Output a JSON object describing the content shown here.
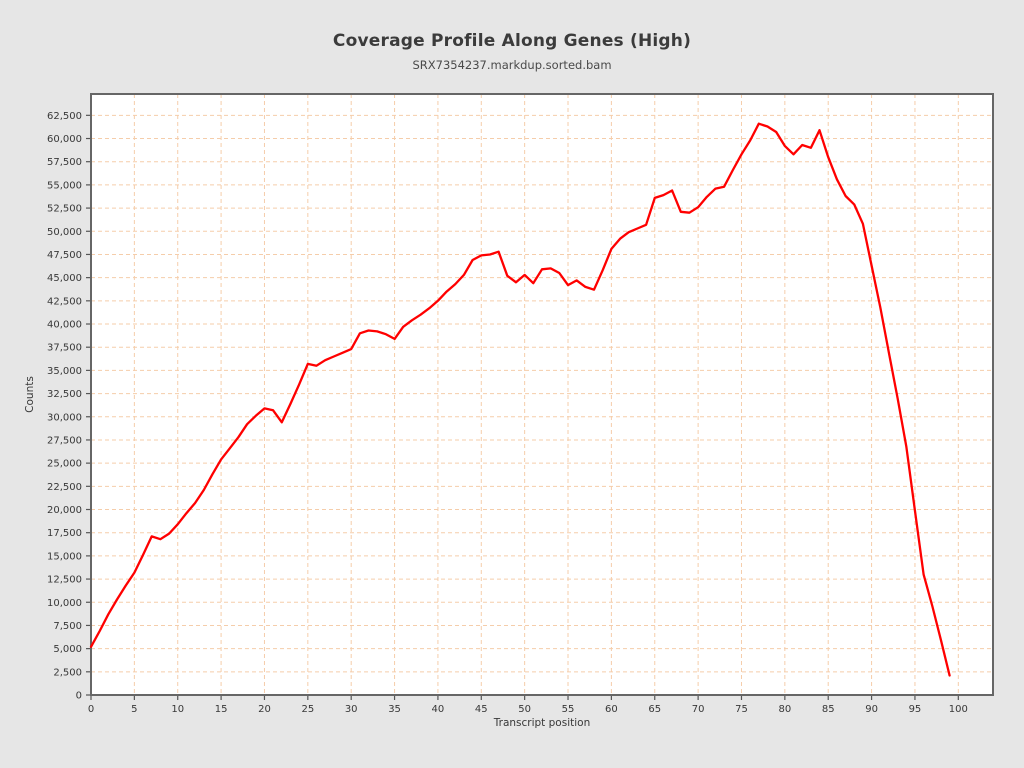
{
  "page": {
    "background_color": "#e6e6e6"
  },
  "chart_data": {
    "type": "line",
    "title": "Coverage Profile Along Genes (High)",
    "subtitle": "SRX7354237.markdup.sorted.bam",
    "xlabel": "Transcript position",
    "ylabel": "Counts",
    "xlim": [
      0,
      104
    ],
    "ylim": [
      0,
      64800
    ],
    "grid": true,
    "legend": "none",
    "x_ticks": [
      0,
      5,
      10,
      15,
      20,
      25,
      30,
      35,
      40,
      45,
      50,
      55,
      60,
      65,
      70,
      75,
      80,
      85,
      90,
      95,
      100
    ],
    "x_tick_labels": [
      "0",
      "5",
      "10",
      "15",
      "20",
      "25",
      "30",
      "35",
      "40",
      "45",
      "50",
      "55",
      "60",
      "65",
      "70",
      "75",
      "80",
      "85",
      "90",
      "95",
      "100"
    ],
    "y_ticks": [
      0,
      2500,
      5000,
      7500,
      10000,
      12500,
      15000,
      17500,
      20000,
      22500,
      25000,
      27500,
      30000,
      32500,
      35000,
      37500,
      40000,
      42500,
      45000,
      47500,
      50000,
      52500,
      55000,
      57500,
      60000,
      62500
    ],
    "y_tick_labels": [
      "0",
      "2,500",
      "5,000",
      "7,500",
      "10,000",
      "12,500",
      "15,000",
      "17,500",
      "20,000",
      "22,500",
      "25,000",
      "27,500",
      "30,000",
      "32,500",
      "35,000",
      "37,500",
      "40,000",
      "42,500",
      "45,000",
      "47,500",
      "50,000",
      "52,500",
      "55,000",
      "57,500",
      "60,000",
      "62,500"
    ],
    "series": [
      {
        "name": "SRX7354237.markdup.sorted.bam",
        "color": "#ff0000",
        "x": [
          0,
          1,
          2,
          3,
          4,
          5,
          6,
          7,
          8,
          9,
          10,
          11,
          12,
          13,
          14,
          15,
          16,
          17,
          18,
          19,
          20,
          21,
          22,
          23,
          24,
          25,
          26,
          27,
          28,
          29,
          30,
          31,
          32,
          33,
          34,
          35,
          36,
          37,
          38,
          39,
          40,
          41,
          42,
          43,
          44,
          45,
          46,
          47,
          48,
          49,
          50,
          51,
          52,
          53,
          54,
          55,
          56,
          57,
          58,
          59,
          60,
          61,
          62,
          63,
          64,
          65,
          66,
          67,
          68,
          69,
          70,
          71,
          72,
          73,
          74,
          75,
          76,
          77,
          78,
          79,
          80,
          81,
          82,
          83,
          84,
          85,
          86,
          87,
          88,
          89,
          90,
          91,
          92,
          93,
          94,
          95,
          96,
          97,
          98,
          99
        ],
        "values": [
          5200,
          6900,
          8700,
          10300,
          11800,
          13200,
          15100,
          17100,
          16800,
          17400,
          18400,
          19600,
          20700,
          22100,
          23800,
          25400,
          26600,
          27800,
          29200,
          30100,
          30900,
          30700,
          29400,
          31400,
          33500,
          35700,
          35500,
          36100,
          36500,
          36900,
          37300,
          39000,
          39300,
          39200,
          38900,
          38400,
          39700,
          40400,
          41000,
          41700,
          42500,
          43500,
          44300,
          45300,
          46900,
          47400,
          47500,
          47800,
          45200,
          44500,
          45300,
          44400,
          45900,
          46000,
          45500,
          44200,
          44700,
          44000,
          43700,
          45800,
          48100,
          49200,
          49900,
          50300,
          50700,
          53600,
          53900,
          54400,
          52100,
          52000,
          52600,
          53700,
          54600,
          54800,
          56600,
          58300,
          59800,
          61600,
          61300,
          60700,
          59200,
          58300,
          59300,
          59000,
          60900,
          58000,
          55600,
          53800,
          52900,
          50800,
          46300,
          41800,
          36900,
          32000,
          26800,
          19900,
          13000,
          9600,
          5900,
          2100
        ]
      }
    ],
    "style": {
      "plot_background": "#ffffff",
      "grid_color": "#f5cdaa",
      "border_color": "#666666",
      "tick_color": "#555555",
      "text_color": "#383838",
      "line_width": 2.3
    }
  }
}
